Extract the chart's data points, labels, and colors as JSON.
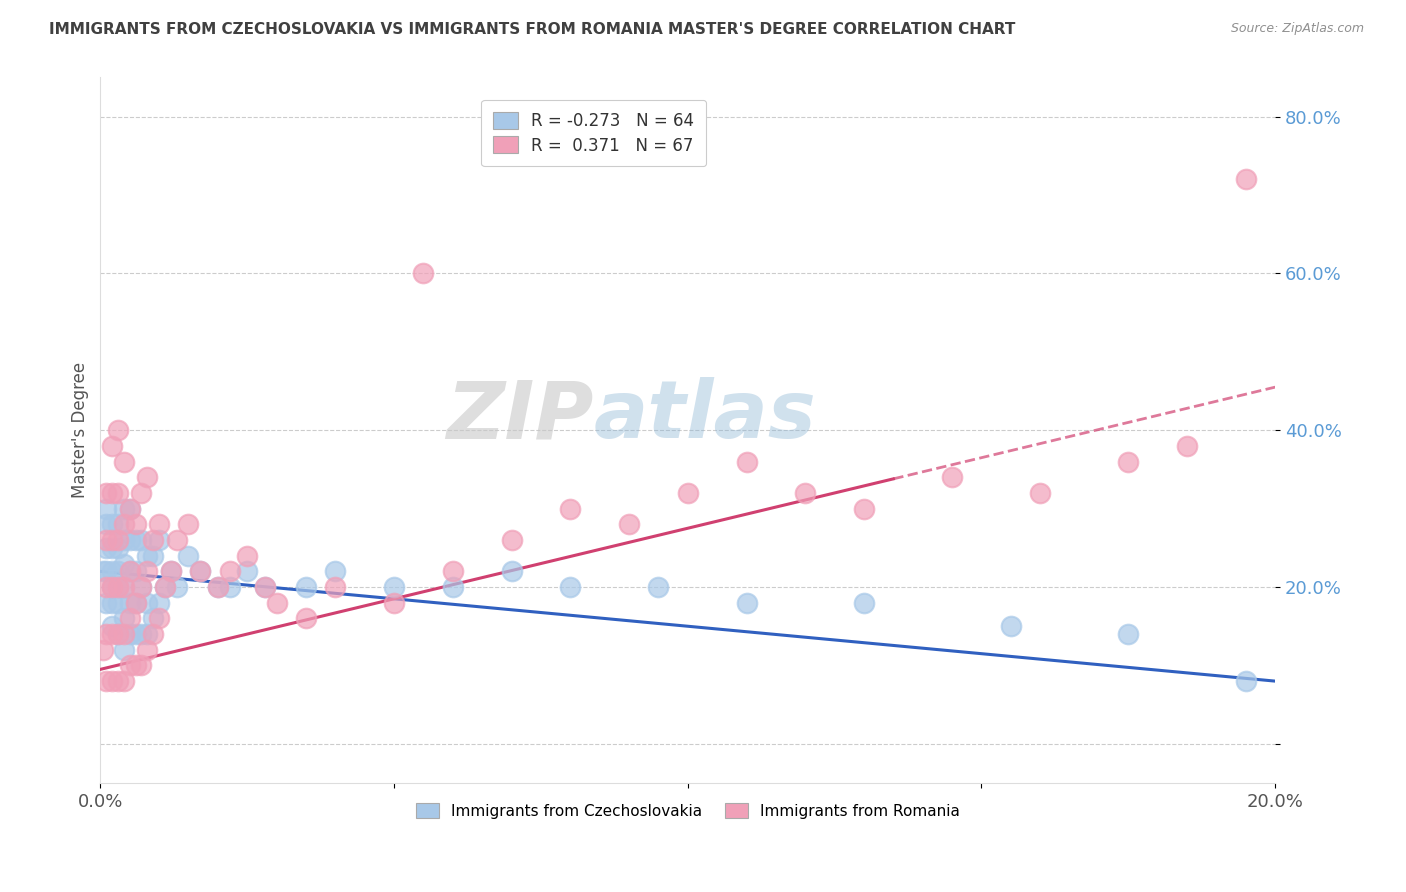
{
  "title": "IMMIGRANTS FROM CZECHOSLOVAKIA VS IMMIGRANTS FROM ROMANIA MASTER'S DEGREE CORRELATION CHART",
  "source": "Source: ZipAtlas.com",
  "ylabel": "Master's Degree",
  "legend_1_label": "R = -0.273   N = 64",
  "legend_2_label": "R =  0.371   N = 67",
  "bottom_legend_1": "Immigrants from Czechoslovakia",
  "bottom_legend_2": "Immigrants from Romania",
  "blue_color": "#a8c8e8",
  "pink_color": "#f0a0b8",
  "blue_line_color": "#3060c0",
  "pink_line_color": "#d04070",
  "title_color": "#404040",
  "source_color": "#909090",
  "background_color": "#ffffff",
  "xlim": [
    0.0,
    0.2
  ],
  "ylim": [
    -0.05,
    0.85
  ],
  "czech_x": [
    0.0005,
    0.001,
    0.001,
    0.001,
    0.001,
    0.001,
    0.002,
    0.002,
    0.002,
    0.002,
    0.002,
    0.002,
    0.003,
    0.003,
    0.003,
    0.003,
    0.003,
    0.003,
    0.004,
    0.004,
    0.004,
    0.004,
    0.004,
    0.004,
    0.005,
    0.005,
    0.005,
    0.005,
    0.005,
    0.006,
    0.006,
    0.006,
    0.006,
    0.007,
    0.007,
    0.007,
    0.008,
    0.008,
    0.008,
    0.009,
    0.009,
    0.01,
    0.01,
    0.011,
    0.012,
    0.013,
    0.015,
    0.017,
    0.02,
    0.022,
    0.025,
    0.028,
    0.035,
    0.04,
    0.05,
    0.06,
    0.07,
    0.08,
    0.095,
    0.11,
    0.13,
    0.155,
    0.175,
    0.195
  ],
  "czech_y": [
    0.22,
    0.18,
    0.22,
    0.25,
    0.28,
    0.3,
    0.15,
    0.18,
    0.2,
    0.22,
    0.25,
    0.28,
    0.14,
    0.18,
    0.2,
    0.22,
    0.25,
    0.28,
    0.12,
    0.16,
    0.2,
    0.23,
    0.26,
    0.3,
    0.14,
    0.18,
    0.22,
    0.26,
    0.3,
    0.14,
    0.18,
    0.22,
    0.26,
    0.14,
    0.2,
    0.26,
    0.14,
    0.18,
    0.24,
    0.16,
    0.24,
    0.18,
    0.26,
    0.2,
    0.22,
    0.2,
    0.24,
    0.22,
    0.2,
    0.2,
    0.22,
    0.2,
    0.2,
    0.22,
    0.2,
    0.2,
    0.22,
    0.2,
    0.2,
    0.18,
    0.18,
    0.15,
    0.14,
    0.08
  ],
  "romania_x": [
    0.0005,
    0.001,
    0.001,
    0.001,
    0.001,
    0.001,
    0.002,
    0.002,
    0.002,
    0.002,
    0.002,
    0.002,
    0.003,
    0.003,
    0.003,
    0.003,
    0.003,
    0.003,
    0.004,
    0.004,
    0.004,
    0.004,
    0.004,
    0.005,
    0.005,
    0.005,
    0.005,
    0.006,
    0.006,
    0.006,
    0.007,
    0.007,
    0.007,
    0.008,
    0.008,
    0.008,
    0.009,
    0.009,
    0.01,
    0.01,
    0.011,
    0.012,
    0.013,
    0.015,
    0.017,
    0.02,
    0.022,
    0.025,
    0.028,
    0.03,
    0.035,
    0.04,
    0.05,
    0.055,
    0.06,
    0.07,
    0.08,
    0.09,
    0.1,
    0.11,
    0.12,
    0.13,
    0.145,
    0.16,
    0.175,
    0.185,
    0.195
  ],
  "romania_y": [
    0.12,
    0.08,
    0.14,
    0.2,
    0.26,
    0.32,
    0.08,
    0.14,
    0.2,
    0.26,
    0.32,
    0.38,
    0.08,
    0.14,
    0.2,
    0.26,
    0.32,
    0.4,
    0.08,
    0.14,
    0.2,
    0.28,
    0.36,
    0.1,
    0.16,
    0.22,
    0.3,
    0.1,
    0.18,
    0.28,
    0.1,
    0.2,
    0.32,
    0.12,
    0.22,
    0.34,
    0.14,
    0.26,
    0.16,
    0.28,
    0.2,
    0.22,
    0.26,
    0.28,
    0.22,
    0.2,
    0.22,
    0.24,
    0.2,
    0.18,
    0.16,
    0.2,
    0.18,
    0.6,
    0.22,
    0.26,
    0.3,
    0.28,
    0.32,
    0.36,
    0.32,
    0.3,
    0.34,
    0.32,
    0.36,
    0.38,
    0.72
  ]
}
